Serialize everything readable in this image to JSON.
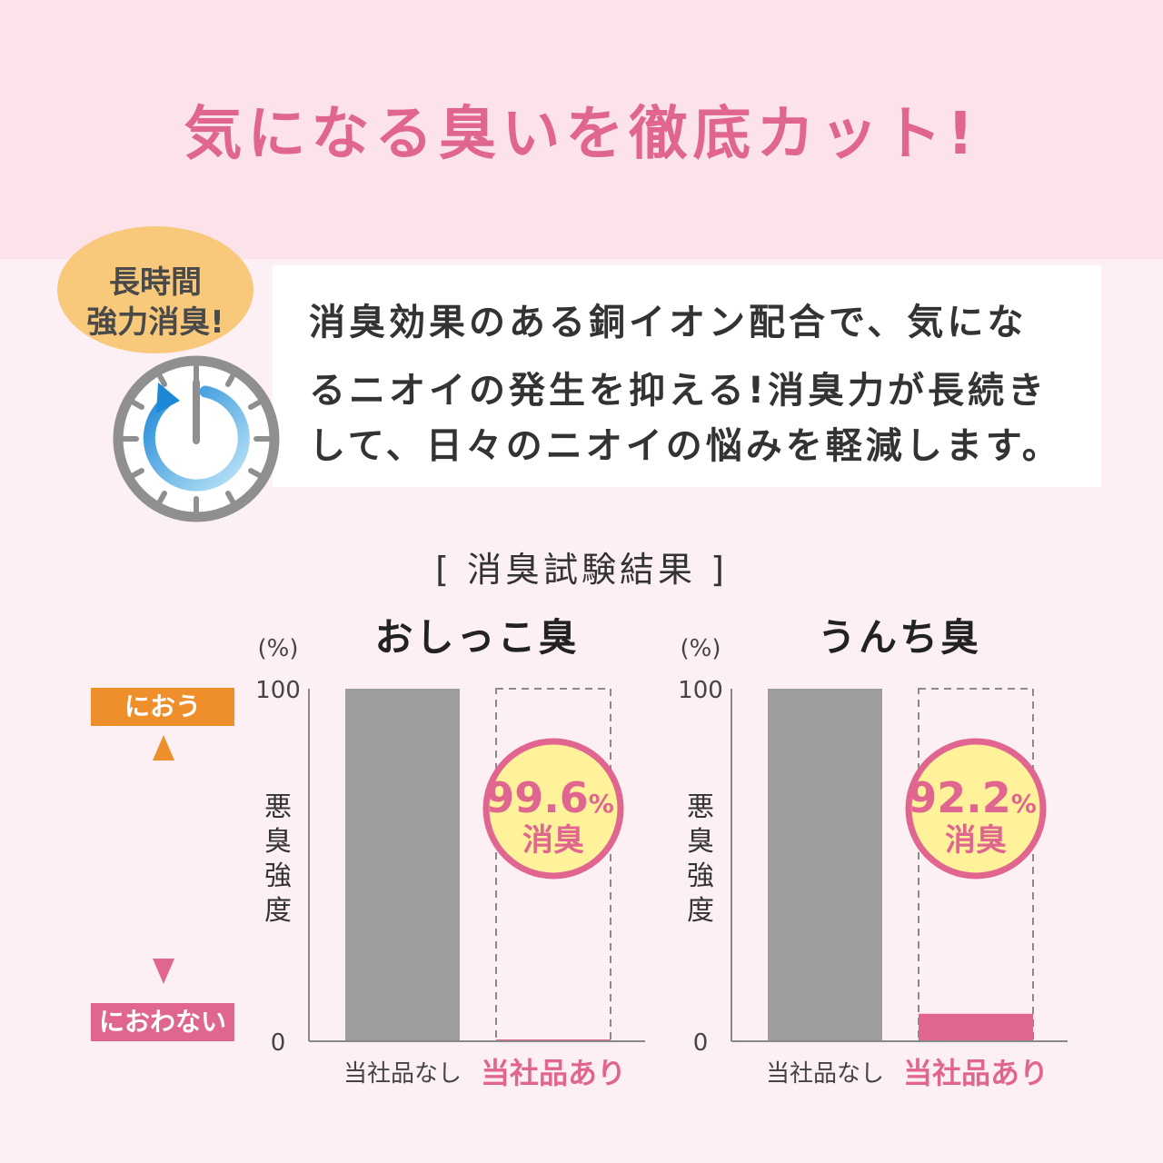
{
  "headline": "気になる臭いを徹底カット!",
  "badge": {
    "line1": "長時間",
    "line2": "強力消臭!"
  },
  "description": [
    "消臭効果のある銅イオン配合で、気にな",
    "るニオイの発生を抑える!消臭力が長続き",
    "して、日々のニオイの悩みを軽減します。"
  ],
  "section_title": "[ 消臭試験結果 ]",
  "scale": {
    "top_label": "におう",
    "bottom_label": "におわない"
  },
  "colors": {
    "pink": "#e0668f",
    "orange": "#ef8f2b",
    "gray": "#9d9d9d",
    "callout": "#fff29b"
  },
  "chart_data": [
    {
      "type": "bar",
      "title": "おしっこ臭",
      "unit": "(%)",
      "ylabel": "悪臭強度",
      "yticks": [
        "100",
        "0"
      ],
      "ylim": [
        0,
        100
      ],
      "categories": [
        "当社品なし",
        "当社品あり"
      ],
      "values": [
        100,
        0.4
      ],
      "callout": {
        "value": "99.6",
        "unit": "%",
        "text": "消臭"
      }
    },
    {
      "type": "bar",
      "title": "うんち臭",
      "unit": "(%)",
      "ylabel": "悪臭強度",
      "yticks": [
        "100",
        "0"
      ],
      "ylim": [
        0,
        100
      ],
      "categories": [
        "当社品なし",
        "当社品あり"
      ],
      "values": [
        100,
        7.8
      ],
      "callout": {
        "value": "92.2",
        "unit": "%",
        "text": "消臭"
      }
    }
  ]
}
